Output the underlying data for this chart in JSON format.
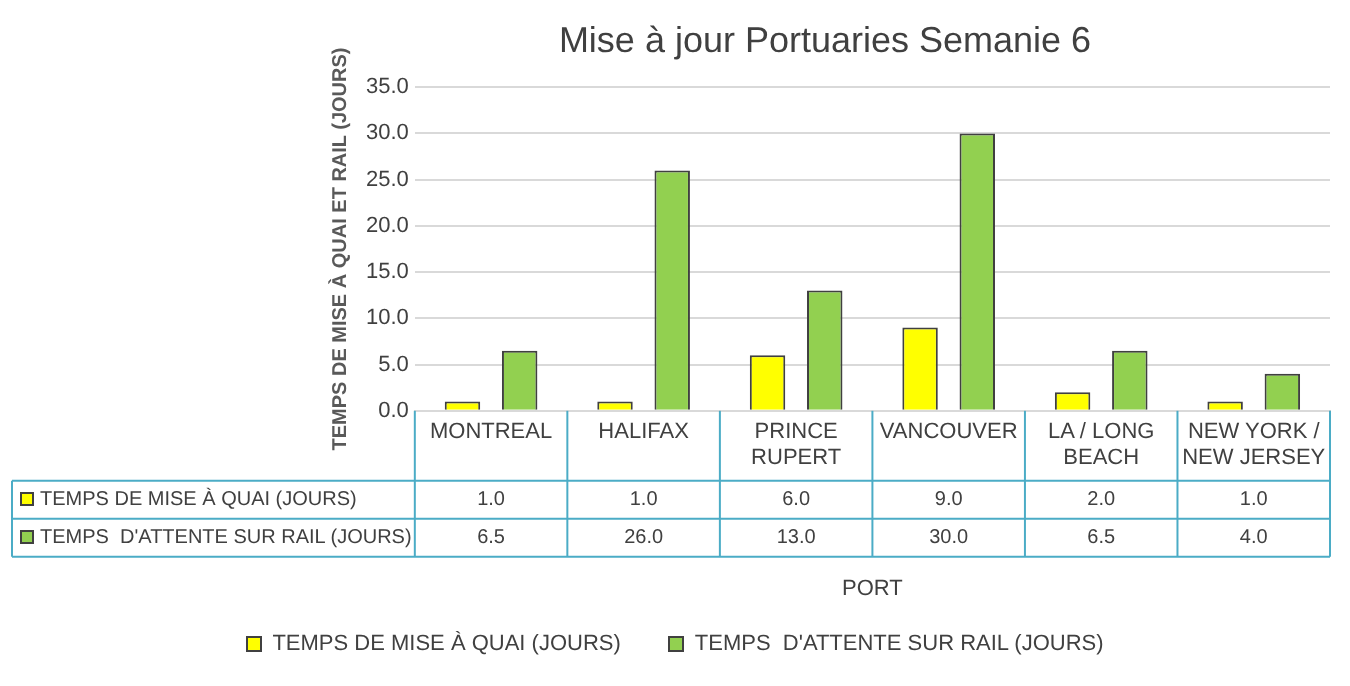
{
  "chart_data": {
    "type": "bar",
    "title": "Mise à jour Portuaries Semanie 6",
    "xlabel": "PORT",
    "ylabel": "TEMPS DE MISE À QUAI ET RAIL (JOURS)",
    "categories": [
      "MONTREAL",
      "HALIFAX",
      "PRINCE RUPERT",
      "VANCOUVER",
      "LA / LONG BEACH",
      "NEW YORK / NEW JERSEY"
    ],
    "series": [
      {
        "name": "TEMPS DE MISE À QUAI (JOURS)",
        "color": "#ffff00",
        "values": [
          1.0,
          1.0,
          6.0,
          9.0,
          2.0,
          1.0
        ],
        "value_labels": [
          "1.0",
          "1.0",
          "6.0",
          "9.0",
          "2.0",
          "1.0"
        ]
      },
      {
        "name": "TEMPS  D'ATTENTE SUR RAIL (JOURS)",
        "color": "#92d050",
        "values": [
          6.5,
          26.0,
          13.0,
          30.0,
          6.5,
          4.0
        ],
        "value_labels": [
          "6.5",
          "26.0",
          "13.0",
          "30.0",
          "6.5",
          "4.0"
        ]
      }
    ],
    "ylim": [
      0,
      35
    ],
    "yticks": [
      {
        "value": 0,
        "label": "0.0"
      },
      {
        "value": 5,
        "label": "5.0"
      },
      {
        "value": 10,
        "label": "10.0"
      },
      {
        "value": 15,
        "label": "15.0"
      },
      {
        "value": 20,
        "label": "20.0"
      },
      {
        "value": 25,
        "label": "25.0"
      },
      {
        "value": 30,
        "label": "30.0"
      },
      {
        "value": 35,
        "label": "35.0"
      }
    ],
    "grid": "y",
    "legend": "bottom"
  }
}
